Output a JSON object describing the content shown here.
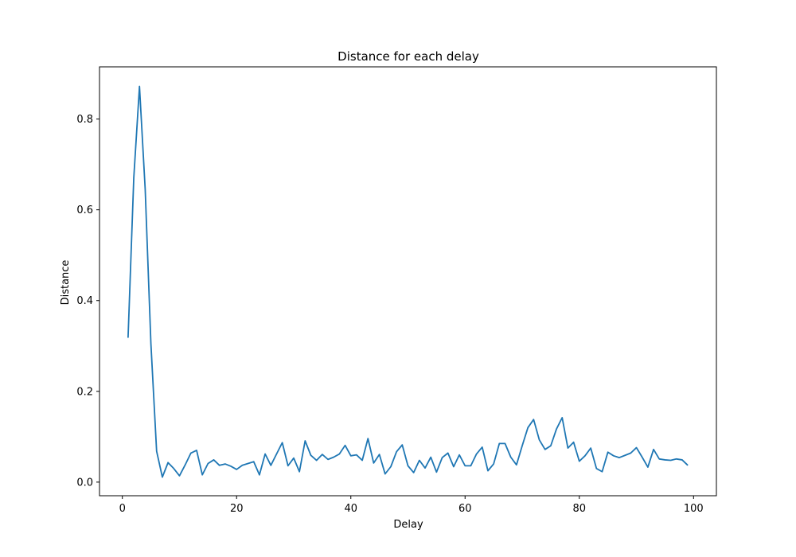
{
  "chart_data": {
    "type": "line",
    "title": "Distance for each delay",
    "xlabel": "Delay",
    "ylabel": "Distance",
    "xlim": [
      -4,
      104
    ],
    "ylim": [
      -0.03,
      0.915
    ],
    "xticks": [
      0,
      20,
      40,
      60,
      80,
      100
    ],
    "yticks": [
      0.0,
      0.2,
      0.4,
      0.6,
      0.8
    ],
    "xtick_labels": [
      "0",
      "20",
      "40",
      "60",
      "80",
      "100"
    ],
    "ytick_labels": [
      "0.0",
      "0.2",
      "0.4",
      "0.6",
      "0.8"
    ],
    "grid": false,
    "line_color": "#1f77b4",
    "series": [
      {
        "x": [
          1,
          2,
          3,
          4,
          5,
          6,
          7,
          8,
          9,
          10,
          11,
          12,
          13,
          14,
          15,
          16,
          17,
          18,
          19,
          20,
          21,
          22,
          23,
          24,
          25,
          26,
          27,
          28,
          29,
          30,
          31,
          32,
          33,
          34,
          35,
          36,
          37,
          38,
          39,
          40,
          41,
          42,
          43,
          44,
          45,
          46,
          47,
          48,
          49,
          50,
          51,
          52,
          53,
          54,
          55,
          56,
          57,
          58,
          59,
          60,
          61,
          62,
          63,
          64,
          65,
          66,
          67,
          68,
          69,
          70,
          71,
          72,
          73,
          74,
          75,
          76,
          77,
          78,
          79,
          80,
          81,
          82,
          83,
          84,
          85,
          86,
          87,
          88,
          89,
          90,
          91,
          92,
          93,
          94,
          95,
          96,
          97,
          98,
          99
        ],
        "y": [
          0.318,
          0.67,
          0.872,
          0.645,
          0.305,
          0.068,
          0.011,
          0.043,
          0.03,
          0.014,
          0.038,
          0.064,
          0.07,
          0.016,
          0.041,
          0.049,
          0.037,
          0.04,
          0.035,
          0.028,
          0.037,
          0.041,
          0.045,
          0.016,
          0.062,
          0.037,
          0.062,
          0.087,
          0.036,
          0.053,
          0.023,
          0.091,
          0.059,
          0.048,
          0.061,
          0.05,
          0.055,
          0.062,
          0.081,
          0.058,
          0.06,
          0.048,
          0.096,
          0.042,
          0.061,
          0.018,
          0.034,
          0.067,
          0.082,
          0.036,
          0.021,
          0.048,
          0.031,
          0.055,
          0.022,
          0.054,
          0.064,
          0.034,
          0.06,
          0.036,
          0.036,
          0.062,
          0.077,
          0.025,
          0.04,
          0.085,
          0.085,
          0.055,
          0.038,
          0.08,
          0.12,
          0.138,
          0.093,
          0.072,
          0.08,
          0.117,
          0.142,
          0.075,
          0.088,
          0.046,
          0.058,
          0.075,
          0.03,
          0.023,
          0.066,
          0.058,
          0.054,
          0.059,
          0.064,
          0.076,
          0.055,
          0.033,
          0.072,
          0.051,
          0.049,
          0.048,
          0.051,
          0.049,
          0.037
        ]
      }
    ]
  }
}
